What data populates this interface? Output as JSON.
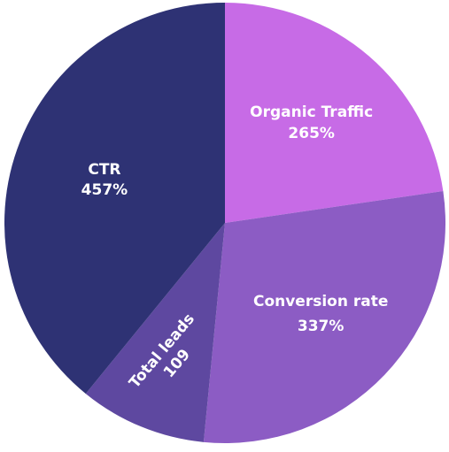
{
  "chart_data": {
    "type": "pie",
    "title": "",
    "slices": [
      {
        "name": "Organic Traffic",
        "label": "265%",
        "value": 265,
        "color": "#c76be6"
      },
      {
        "name": "Conversion rate",
        "label": "337%",
        "value": 337,
        "color": "#8c5cc4"
      },
      {
        "name": "Total leads",
        "label": "109",
        "value": 109,
        "color": "#5e48a0"
      },
      {
        "name": "CTR",
        "label": "457%",
        "value": 457,
        "color": "#2e3274"
      }
    ]
  }
}
